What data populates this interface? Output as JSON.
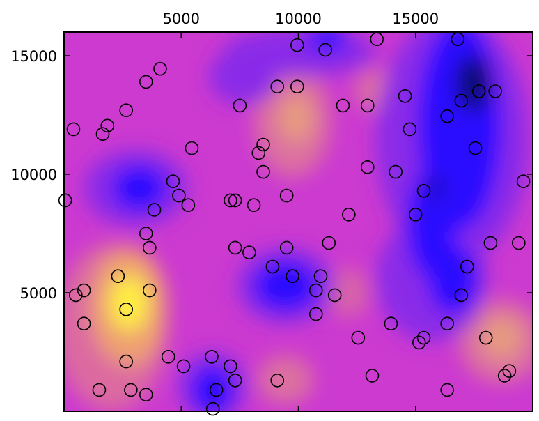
{
  "chart_data": {
    "type": "scatter",
    "x": [
      9950,
      11150,
      13350,
      16800,
      4100,
      3500,
      9100,
      9950,
      7500,
      11900,
      12950,
      14550,
      16950,
      18400,
      17700,
      400,
      1850,
      1650,
      2650,
      5450,
      8500,
      8300,
      14750,
      17550,
      16350,
      8500,
      12950,
      14150,
      4650,
      4900,
      5300,
      3850,
      7100,
      7300,
      8100,
      9500,
      15350,
      15000,
      12150,
      19600,
      50,
      3500,
      3650,
      7300,
      7900,
      9500,
      11300,
      18200,
      19400,
      2300,
      8900,
      9750,
      10950,
      17200,
      500,
      850,
      3650,
      2650,
      10750,
      11550,
      10750,
      16950,
      850,
      13950,
      16350,
      12550,
      15150,
      15350,
      18000,
      4450,
      2650,
      5100,
      6300,
      7100,
      7300,
      6500,
      9100,
      13150,
      18800,
      19000,
      1500,
      2850,
      3500,
      16350,
      6350
    ],
    "y": [
      15450,
      15250,
      15700,
      15700,
      14450,
      13900,
      13700,
      13700,
      12900,
      12900,
      12900,
      13300,
      13100,
      13500,
      13500,
      11900,
      12050,
      11700,
      12700,
      11100,
      11250,
      10900,
      11900,
      11100,
      12450,
      10100,
      10300,
      10100,
      9700,
      9100,
      8700,
      8500,
      8900,
      8900,
      8700,
      9100,
      9300,
      8300,
      8300,
      9700,
      8900,
      7500,
      6900,
      6900,
      6700,
      6900,
      7100,
      7100,
      7100,
      5700,
      6100,
      5700,
      5700,
      6100,
      4900,
      5100,
      5100,
      4300,
      5100,
      4900,
      4100,
      4900,
      3700,
      3700,
      3700,
      3100,
      2900,
      3100,
      3100,
      2300,
      2100,
      1900,
      2300,
      1900,
      1300,
      900,
      1300,
      1500,
      1500,
      1700,
      900,
      900,
      700,
      900,
      100
    ],
    "color": "#000000",
    "xlim": [
      0,
      20000
    ],
    "ylim": [
      0,
      16000
    ],
    "xticks": [
      5000,
      10000,
      15000
    ],
    "yticks": [
      5000,
      10000,
      15000
    ]
  }
}
